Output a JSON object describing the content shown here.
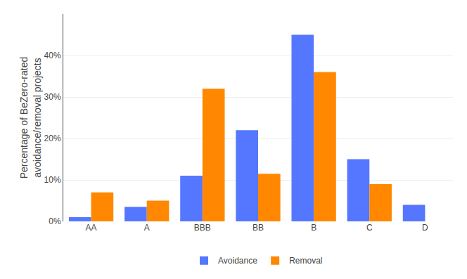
{
  "chart_data": {
    "type": "bar",
    "categories": [
      "AA",
      "A",
      "BBB",
      "BB",
      "B",
      "C",
      "D"
    ],
    "series": [
      {
        "name": "Avoidance",
        "color": "#5577ff",
        "values": [
          1,
          3.5,
          11,
          22,
          45,
          15,
          4
        ]
      },
      {
        "name": "Removal",
        "color": "#ff8800",
        "values": [
          7,
          5,
          32,
          11.5,
          36,
          9,
          0
        ]
      }
    ],
    "ylabel": "Percentage of BeZero-rated\navoidance/removal projects",
    "ylim": [
      0,
      50
    ],
    "yticks": [
      {
        "value": 0,
        "label": "0%"
      },
      {
        "value": 10,
        "label": "10%"
      },
      {
        "value": 20,
        "label": "20%"
      },
      {
        "value": 30,
        "label": "30%"
      },
      {
        "value": 40,
        "label": "40%"
      }
    ],
    "grid": true,
    "legend": "bottom"
  }
}
